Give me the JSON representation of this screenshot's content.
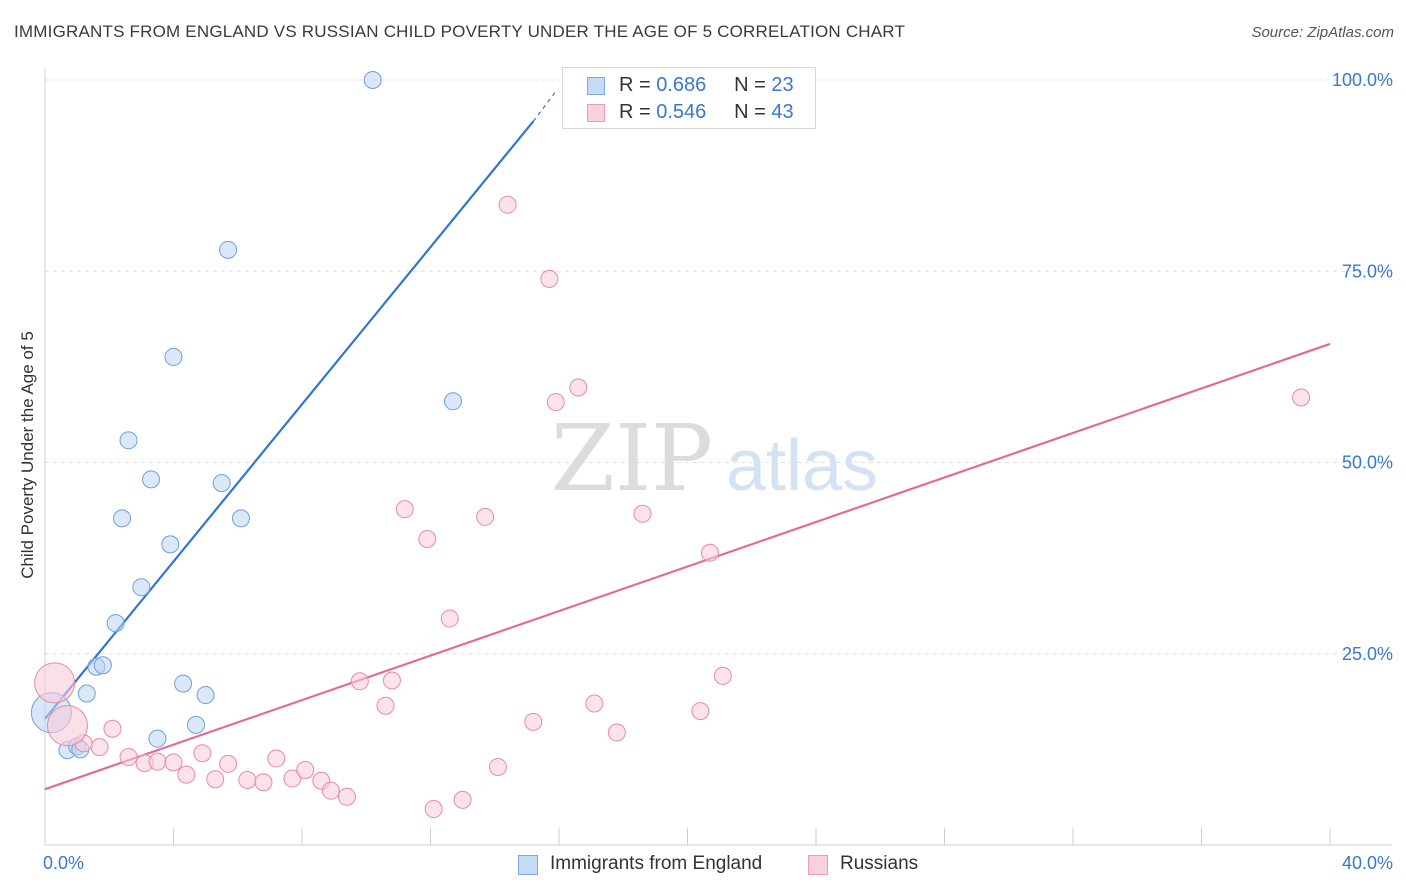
{
  "title": "IMMIGRANTS FROM ENGLAND VS RUSSIAN CHILD POVERTY UNDER THE AGE OF 5 CORRELATION CHART",
  "source": "Source: ZipAtlas.com",
  "watermark": {
    "zip": "ZIP",
    "atlas": "atlas"
  },
  "legend_top": {
    "rows": [
      {
        "r_label": "R =",
        "r_value": "0.686",
        "n_label": "N =",
        "n_value": "23",
        "color": "#a9c8ee"
      },
      {
        "r_label": "R =",
        "r_value": "0.546",
        "n_label": "N =",
        "n_value": "43",
        "color": "#f7b8cb"
      }
    ]
  },
  "legend_bottom": [
    {
      "label": "Immigrants from England",
      "color": "#a9c8ee"
    },
    {
      "label": "Russians",
      "color": "#f7b8cb"
    }
  ],
  "chart_data": {
    "type": "scatter",
    "title": "IMMIGRANTS FROM ENGLAND VS RUSSIAN CHILD POVERTY UNDER THE AGE OF 5 CORRELATION CHART",
    "xlabel": "",
    "ylabel": "Child Poverty Under the Age of 5",
    "xlim": [
      0,
      40
    ],
    "ylim": [
      0,
      100
    ],
    "x_tick_labels": [
      "0.0%",
      "40.0%"
    ],
    "y_tick_labels": [
      "25.0%",
      "50.0%",
      "75.0%",
      "100.0%"
    ],
    "y_ticks": [
      25,
      50,
      75,
      100
    ],
    "grid": true,
    "legend": "top-center",
    "series": [
      {
        "name": "Immigrants from England",
        "color": "#6fa0dc",
        "fill": "#bcd5f3",
        "trend": {
          "x": [
            0.0,
            15.2
          ],
          "y": [
            16.5,
            94.6
          ],
          "dashed_to": [
            15.9,
            98.5
          ],
          "color": "#2f76d0"
        },
        "points": [
          {
            "x": 10.2,
            "y": 100.0
          },
          {
            "x": 5.7,
            "y": 77.8
          },
          {
            "x": 4.0,
            "y": 63.8
          },
          {
            "x": 12.7,
            "y": 58.0
          },
          {
            "x": 2.6,
            "y": 52.9
          },
          {
            "x": 3.3,
            "y": 47.8
          },
          {
            "x": 5.5,
            "y": 47.3
          },
          {
            "x": 2.4,
            "y": 42.7
          },
          {
            "x": 6.1,
            "y": 42.7
          },
          {
            "x": 3.9,
            "y": 39.3
          },
          {
            "x": 3.0,
            "y": 33.7
          },
          {
            "x": 2.2,
            "y": 29.0
          },
          {
            "x": 1.6,
            "y": 23.3
          },
          {
            "x": 1.8,
            "y": 23.5
          },
          {
            "x": 1.3,
            "y": 19.8
          },
          {
            "x": 4.3,
            "y": 21.1
          },
          {
            "x": 5.0,
            "y": 19.6
          },
          {
            "x": 4.7,
            "y": 15.7
          },
          {
            "x": 3.5,
            "y": 13.9
          },
          {
            "x": 0.7,
            "y": 12.4
          },
          {
            "x": 1.0,
            "y": 12.9
          },
          {
            "x": 1.1,
            "y": 12.5
          },
          {
            "x": 0.2,
            "y": 17.3,
            "large": true
          }
        ]
      },
      {
        "name": "Russians",
        "color": "#e88aa8",
        "fill": "#f9cbd9",
        "trend": {
          "x": [
            0.0,
            40.0
          ],
          "y": [
            7.3,
            65.5
          ],
          "color": "#e46a95"
        },
        "points": [
          {
            "x": 14.4,
            "y": 83.7
          },
          {
            "x": 15.7,
            "y": 74.0
          },
          {
            "x": 16.6,
            "y": 59.8
          },
          {
            "x": 15.9,
            "y": 57.9
          },
          {
            "x": 39.1,
            "y": 58.5
          },
          {
            "x": 11.2,
            "y": 43.9
          },
          {
            "x": 13.7,
            "y": 42.9
          },
          {
            "x": 18.6,
            "y": 43.3
          },
          {
            "x": 11.9,
            "y": 40.0
          },
          {
            "x": 20.7,
            "y": 38.2
          },
          {
            "x": 12.6,
            "y": 29.6
          },
          {
            "x": 9.8,
            "y": 21.4
          },
          {
            "x": 10.8,
            "y": 21.5
          },
          {
            "x": 21.1,
            "y": 22.1
          },
          {
            "x": 17.1,
            "y": 18.5
          },
          {
            "x": 10.6,
            "y": 18.2
          },
          {
            "x": 20.4,
            "y": 17.5
          },
          {
            "x": 15.2,
            "y": 16.1
          },
          {
            "x": 17.8,
            "y": 14.7
          },
          {
            "x": 2.1,
            "y": 15.2
          },
          {
            "x": 1.7,
            "y": 12.8
          },
          {
            "x": 1.2,
            "y": 13.3
          },
          {
            "x": 2.6,
            "y": 11.5
          },
          {
            "x": 3.1,
            "y": 10.7
          },
          {
            "x": 3.5,
            "y": 10.9
          },
          {
            "x": 4.0,
            "y": 10.8
          },
          {
            "x": 4.9,
            "y": 12.0
          },
          {
            "x": 5.7,
            "y": 10.6
          },
          {
            "x": 7.2,
            "y": 11.3
          },
          {
            "x": 4.4,
            "y": 9.2
          },
          {
            "x": 5.3,
            "y": 8.6
          },
          {
            "x": 6.3,
            "y": 8.5
          },
          {
            "x": 6.8,
            "y": 8.2
          },
          {
            "x": 7.7,
            "y": 8.7
          },
          {
            "x": 8.1,
            "y": 9.8
          },
          {
            "x": 8.6,
            "y": 8.4
          },
          {
            "x": 8.9,
            "y": 7.1
          },
          {
            "x": 9.4,
            "y": 6.3
          },
          {
            "x": 14.1,
            "y": 10.2
          },
          {
            "x": 12.1,
            "y": 4.7
          },
          {
            "x": 13.0,
            "y": 5.9
          },
          {
            "x": 0.7,
            "y": 15.6,
            "large": true
          },
          {
            "x": 0.3,
            "y": 21.2,
            "large": true
          }
        ]
      }
    ]
  }
}
